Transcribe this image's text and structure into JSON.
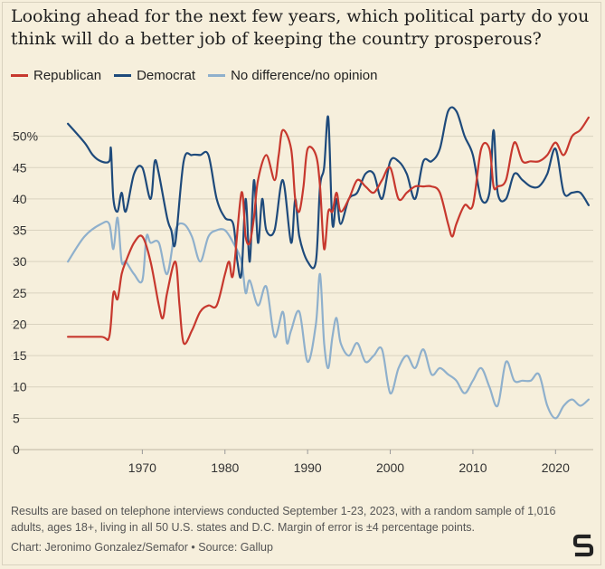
{
  "title": "Looking ahead for the next few years, which political party do you think will do a better job of keeping the country prosperous?",
  "note": "Results are based on telephone interviews conducted September 1-23, 2023, with a random sample of 1,016 adults, ages 18+, living in all 50 U.S. states and D.C. Margin of error is ±4 percentage points.",
  "credit": "Chart: Jeronimo Gonzalez/Semafor • Source: Gallup",
  "logo_icon": "semafor-logo-icon",
  "colors": {
    "background": "#f6efdc",
    "republican": "#c7382e",
    "democrat": "#1e4a7b",
    "no_difference": "#8fb0cc",
    "grid": "#d9d2bf"
  },
  "chart_data": {
    "type": "line",
    "xlabel": "",
    "ylabel": "",
    "xlim": [
      1960,
      2025
    ],
    "ylim": [
      0,
      55
    ],
    "x_ticks": [
      1970,
      1980,
      1990,
      2000,
      2010,
      2020
    ],
    "x_tick_labels": [
      "1970",
      "1980",
      "1990",
      "2000",
      "2010",
      "2020"
    ],
    "y_ticks": [
      0,
      5,
      10,
      15,
      20,
      25,
      30,
      35,
      40,
      45,
      50
    ],
    "y_tick_labels": [
      "0",
      "5",
      "10",
      "15",
      "20",
      "25",
      "30",
      "35",
      "40",
      "45",
      "50%"
    ],
    "grid": "horizontal",
    "legend": "top-left",
    "series": [
      {
        "name": "Republican",
        "color": "#c7382e",
        "points": [
          [
            1961,
            18
          ],
          [
            1965,
            18
          ],
          [
            1966,
            18
          ],
          [
            1966.5,
            25
          ],
          [
            1967,
            24
          ],
          [
            1967.5,
            28
          ],
          [
            1968,
            30
          ],
          [
            1969,
            33
          ],
          [
            1970,
            34
          ],
          [
            1971,
            30
          ],
          [
            1972,
            23
          ],
          [
            1972.5,
            21
          ],
          [
            1973,
            25
          ],
          [
            1974,
            30
          ],
          [
            1974.5,
            23
          ],
          [
            1975,
            17
          ],
          [
            1976,
            19
          ],
          [
            1977,
            22
          ],
          [
            1978,
            23
          ],
          [
            1979,
            23
          ],
          [
            1980,
            28
          ],
          [
            1980.5,
            30
          ],
          [
            1981,
            28
          ],
          [
            1982,
            41
          ],
          [
            1982.5,
            34
          ],
          [
            1983,
            33
          ],
          [
            1983.5,
            37
          ],
          [
            1984,
            43
          ],
          [
            1985,
            47
          ],
          [
            1986,
            43
          ],
          [
            1986.5,
            47
          ],
          [
            1987,
            51
          ],
          [
            1988,
            48
          ],
          [
            1988.5,
            40
          ],
          [
            1989,
            38
          ],
          [
            1989.5,
            42
          ],
          [
            1990,
            48
          ],
          [
            1991,
            47
          ],
          [
            1991.5,
            42
          ],
          [
            1992,
            32
          ],
          [
            1992.5,
            38
          ],
          [
            1993,
            38
          ],
          [
            1993.5,
            41
          ],
          [
            1994,
            38
          ],
          [
            1995,
            40
          ],
          [
            1996,
            43
          ],
          [
            1997,
            42
          ],
          [
            1998,
            41
          ],
          [
            1999,
            43
          ],
          [
            2000,
            45
          ],
          [
            2001,
            40
          ],
          [
            2002,
            41
          ],
          [
            2003,
            42
          ],
          [
            2004,
            42
          ],
          [
            2005,
            42
          ],
          [
            2006,
            41
          ],
          [
            2007,
            36
          ],
          [
            2007.5,
            34
          ],
          [
            2008,
            36
          ],
          [
            2009,
            39
          ],
          [
            2010,
            39
          ],
          [
            2011,
            48
          ],
          [
            2012,
            48
          ],
          [
            2012.5,
            42
          ],
          [
            2013,
            42
          ],
          [
            2014,
            43
          ],
          [
            2015,
            49
          ],
          [
            2016,
            46
          ],
          [
            2017,
            46
          ],
          [
            2018,
            46
          ],
          [
            2019,
            47
          ],
          [
            2020,
            49
          ],
          [
            2021,
            47
          ],
          [
            2022,
            50
          ],
          [
            2023,
            51
          ],
          [
            2024,
            53
          ]
        ]
      },
      {
        "name": "Democrat",
        "color": "#1e4a7b",
        "points": [
          [
            1961,
            52
          ],
          [
            1963,
            49
          ],
          [
            1964,
            47
          ],
          [
            1965,
            46
          ],
          [
            1966,
            46
          ],
          [
            1966.2,
            48
          ],
          [
            1966.5,
            40
          ],
          [
            1967,
            38
          ],
          [
            1967.5,
            41
          ],
          [
            1968,
            38
          ],
          [
            1969,
            44
          ],
          [
            1970,
            45
          ],
          [
            1971,
            40
          ],
          [
            1971.5,
            46
          ],
          [
            1972,
            44
          ],
          [
            1973,
            37
          ],
          [
            1973.5,
            35
          ],
          [
            1974,
            33
          ],
          [
            1975,
            46
          ],
          [
            1976,
            47
          ],
          [
            1977,
            47
          ],
          [
            1978,
            47
          ],
          [
            1979,
            40
          ],
          [
            1980,
            37
          ],
          [
            1981,
            36
          ],
          [
            1981.5,
            30
          ],
          [
            1982,
            28
          ],
          [
            1982.5,
            40
          ],
          [
            1983,
            30
          ],
          [
            1983.5,
            43
          ],
          [
            1984,
            33
          ],
          [
            1984.5,
            40
          ],
          [
            1985,
            35
          ],
          [
            1986,
            35
          ],
          [
            1987,
            43
          ],
          [
            1988,
            33
          ],
          [
            1988.5,
            40
          ],
          [
            1989,
            34
          ],
          [
            1990,
            30
          ],
          [
            1991,
            30
          ],
          [
            1991.5,
            42
          ],
          [
            1992,
            45
          ],
          [
            1992.5,
            53
          ],
          [
            1993,
            36
          ],
          [
            1993.5,
            40
          ],
          [
            1994,
            36
          ],
          [
            1995,
            40
          ],
          [
            1996,
            41
          ],
          [
            1997,
            44
          ],
          [
            1998,
            44
          ],
          [
            1999,
            40
          ],
          [
            2000,
            46
          ],
          [
            2001,
            46
          ],
          [
            2002,
            44
          ],
          [
            2003,
            40
          ],
          [
            2004,
            46
          ],
          [
            2005,
            46
          ],
          [
            2006,
            48
          ],
          [
            2007,
            54
          ],
          [
            2008,
            54
          ],
          [
            2009,
            50
          ],
          [
            2010,
            47
          ],
          [
            2011,
            40
          ],
          [
            2012,
            41
          ],
          [
            2012.5,
            51
          ],
          [
            2013,
            41
          ],
          [
            2014,
            40
          ],
          [
            2015,
            44
          ],
          [
            2016,
            43
          ],
          [
            2017,
            42
          ],
          [
            2018,
            42
          ],
          [
            2019,
            44
          ],
          [
            2020,
            48
          ],
          [
            2021,
            41
          ],
          [
            2022,
            41
          ],
          [
            2023,
            41
          ],
          [
            2024,
            39
          ]
        ]
      },
      {
        "name": "No difference/no opinion",
        "color": "#8fb0cc",
        "points": [
          [
            1961,
            30
          ],
          [
            1963,
            34
          ],
          [
            1965,
            36
          ],
          [
            1966,
            36
          ],
          [
            1966.5,
            32
          ],
          [
            1967,
            37
          ],
          [
            1967.5,
            30
          ],
          [
            1968,
            30
          ],
          [
            1969,
            28
          ],
          [
            1970,
            27
          ],
          [
            1970.5,
            34
          ],
          [
            1971,
            33
          ],
          [
            1972,
            33
          ],
          [
            1973,
            28
          ],
          [
            1974,
            35
          ],
          [
            1975,
            36
          ],
          [
            1976,
            34
          ],
          [
            1977,
            30
          ],
          [
            1978,
            34
          ],
          [
            1979,
            35
          ],
          [
            1980,
            35
          ],
          [
            1981,
            33
          ],
          [
            1982,
            30
          ],
          [
            1982.5,
            25
          ],
          [
            1983,
            27
          ],
          [
            1984,
            23
          ],
          [
            1985,
            26
          ],
          [
            1986,
            18
          ],
          [
            1987,
            22
          ],
          [
            1987.5,
            17
          ],
          [
            1988,
            19
          ],
          [
            1989,
            22
          ],
          [
            1990,
            14
          ],
          [
            1991,
            20
          ],
          [
            1991.5,
            28
          ],
          [
            1992,
            17
          ],
          [
            1992.5,
            13
          ],
          [
            1993,
            18
          ],
          [
            1993.5,
            21
          ],
          [
            1994,
            17
          ],
          [
            1995,
            15
          ],
          [
            1996,
            17
          ],
          [
            1997,
            14
          ],
          [
            1998,
            15
          ],
          [
            1999,
            16
          ],
          [
            2000,
            9
          ],
          [
            2001,
            13
          ],
          [
            2002,
            15
          ],
          [
            2003,
            13
          ],
          [
            2004,
            16
          ],
          [
            2005,
            12
          ],
          [
            2006,
            13
          ],
          [
            2007,
            12
          ],
          [
            2008,
            11
          ],
          [
            2009,
            9
          ],
          [
            2010,
            11
          ],
          [
            2011,
            13
          ],
          [
            2012,
            10
          ],
          [
            2013,
            7
          ],
          [
            2014,
            14
          ],
          [
            2015,
            11
          ],
          [
            2016,
            11
          ],
          [
            2017,
            11
          ],
          [
            2018,
            12
          ],
          [
            2019,
            7
          ],
          [
            2020,
            5
          ],
          [
            2021,
            7
          ],
          [
            2022,
            8
          ],
          [
            2023,
            7
          ],
          [
            2024,
            8
          ]
        ]
      }
    ]
  }
}
